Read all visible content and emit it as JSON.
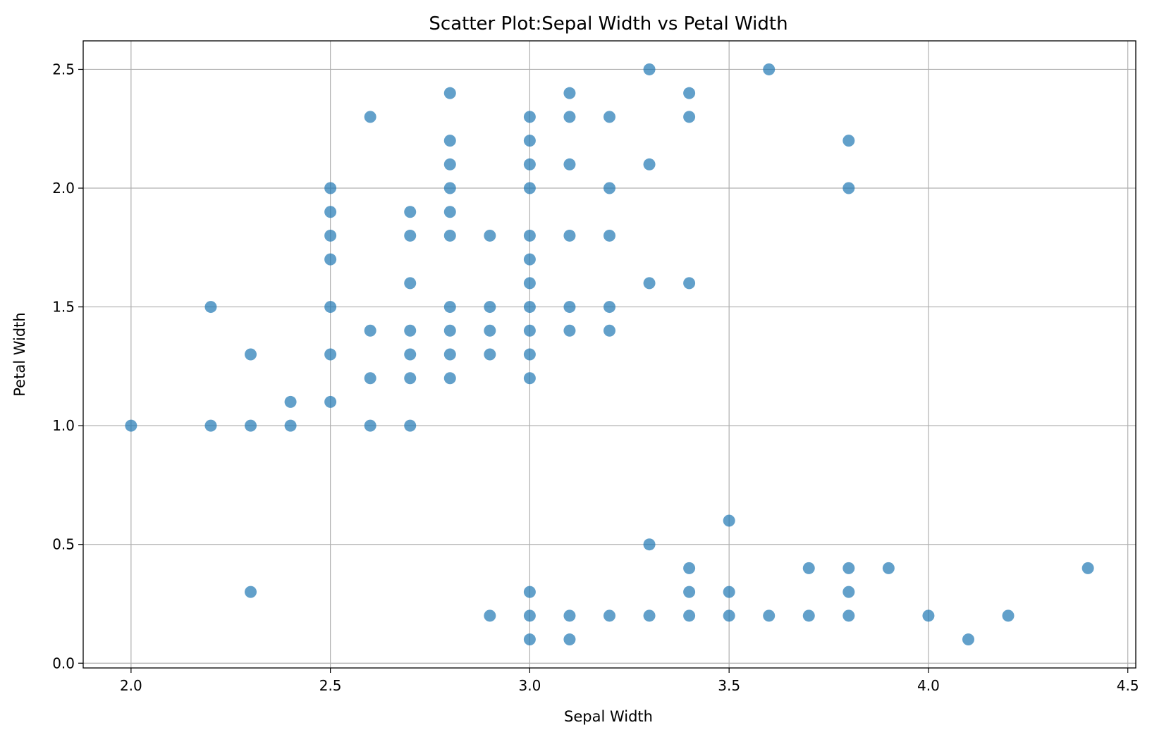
{
  "chart_data": {
    "type": "scatter",
    "title": "Scatter Plot:Sepal Width vs Petal Width",
    "xlabel": "Sepal Width",
    "ylabel": "Petal Width",
    "xlim": [
      1.88,
      4.52
    ],
    "ylim": [
      -0.02,
      2.62
    ],
    "xticks": [
      2.0,
      2.5,
      3.0,
      3.5,
      4.0,
      4.5
    ],
    "xtick_labels": [
      "2.0",
      "2.5",
      "3.0",
      "3.5",
      "4.0",
      "4.5"
    ],
    "yticks": [
      0.0,
      0.5,
      1.0,
      1.5,
      2.0,
      2.5
    ],
    "ytick_labels": [
      "0.0",
      "0.5",
      "1.0",
      "1.5",
      "2.0",
      "2.5"
    ],
    "grid": true,
    "marker_color": "#1f77b4",
    "marker_alpha": 0.7,
    "points": [
      [
        2.0,
        1.0
      ],
      [
        2.2,
        1.5
      ],
      [
        2.2,
        1.0
      ],
      [
        2.3,
        1.3
      ],
      [
        2.3,
        1.0
      ],
      [
        2.3,
        0.3
      ],
      [
        2.4,
        1.1
      ],
      [
        2.4,
        1.0
      ],
      [
        2.5,
        2.0
      ],
      [
        2.5,
        1.9
      ],
      [
        2.5,
        1.8
      ],
      [
        2.5,
        1.7
      ],
      [
        2.5,
        1.5
      ],
      [
        2.5,
        1.3
      ],
      [
        2.5,
        1.1
      ],
      [
        2.6,
        2.3
      ],
      [
        2.6,
        1.4
      ],
      [
        2.6,
        1.2
      ],
      [
        2.6,
        1.0
      ],
      [
        2.7,
        1.9
      ],
      [
        2.7,
        1.8
      ],
      [
        2.7,
        1.6
      ],
      [
        2.7,
        1.4
      ],
      [
        2.7,
        1.3
      ],
      [
        2.7,
        1.2
      ],
      [
        2.7,
        1.0
      ],
      [
        2.8,
        2.4
      ],
      [
        2.8,
        2.2
      ],
      [
        2.8,
        2.1
      ],
      [
        2.8,
        2.0
      ],
      [
        2.8,
        1.9
      ],
      [
        2.8,
        1.8
      ],
      [
        2.8,
        1.5
      ],
      [
        2.8,
        1.4
      ],
      [
        2.8,
        1.3
      ],
      [
        2.8,
        1.2
      ],
      [
        2.9,
        1.8
      ],
      [
        2.9,
        1.5
      ],
      [
        2.9,
        1.4
      ],
      [
        2.9,
        1.3
      ],
      [
        2.9,
        0.2
      ],
      [
        3.0,
        2.3
      ],
      [
        3.0,
        2.2
      ],
      [
        3.0,
        2.1
      ],
      [
        3.0,
        2.0
      ],
      [
        3.0,
        1.8
      ],
      [
        3.0,
        1.7
      ],
      [
        3.0,
        1.6
      ],
      [
        3.0,
        1.5
      ],
      [
        3.0,
        1.4
      ],
      [
        3.0,
        1.3
      ],
      [
        3.0,
        1.2
      ],
      [
        3.0,
        0.3
      ],
      [
        3.0,
        0.2
      ],
      [
        3.0,
        0.1
      ],
      [
        3.1,
        2.4
      ],
      [
        3.1,
        2.3
      ],
      [
        3.1,
        2.1
      ],
      [
        3.1,
        1.8
      ],
      [
        3.1,
        1.5
      ],
      [
        3.1,
        1.4
      ],
      [
        3.1,
        0.2
      ],
      [
        3.1,
        0.1
      ],
      [
        3.2,
        2.3
      ],
      [
        3.2,
        2.0
      ],
      [
        3.2,
        1.8
      ],
      [
        3.2,
        1.5
      ],
      [
        3.2,
        1.4
      ],
      [
        3.2,
        0.2
      ],
      [
        3.3,
        2.5
      ],
      [
        3.3,
        2.1
      ],
      [
        3.3,
        1.6
      ],
      [
        3.3,
        0.5
      ],
      [
        3.3,
        0.2
      ],
      [
        3.4,
        2.4
      ],
      [
        3.4,
        2.3
      ],
      [
        3.4,
        1.6
      ],
      [
        3.4,
        0.4
      ],
      [
        3.4,
        0.3
      ],
      [
        3.4,
        0.2
      ],
      [
        3.5,
        0.6
      ],
      [
        3.5,
        0.3
      ],
      [
        3.5,
        0.2
      ],
      [
        3.6,
        2.5
      ],
      [
        3.6,
        0.2
      ],
      [
        3.7,
        0.4
      ],
      [
        3.7,
        0.2
      ],
      [
        3.8,
        2.2
      ],
      [
        3.8,
        2.0
      ],
      [
        3.8,
        0.4
      ],
      [
        3.8,
        0.3
      ],
      [
        3.8,
        0.2
      ],
      [
        3.9,
        0.4
      ],
      [
        4.0,
        0.2
      ],
      [
        4.1,
        0.1
      ],
      [
        4.2,
        0.2
      ],
      [
        4.4,
        0.4
      ]
    ]
  }
}
